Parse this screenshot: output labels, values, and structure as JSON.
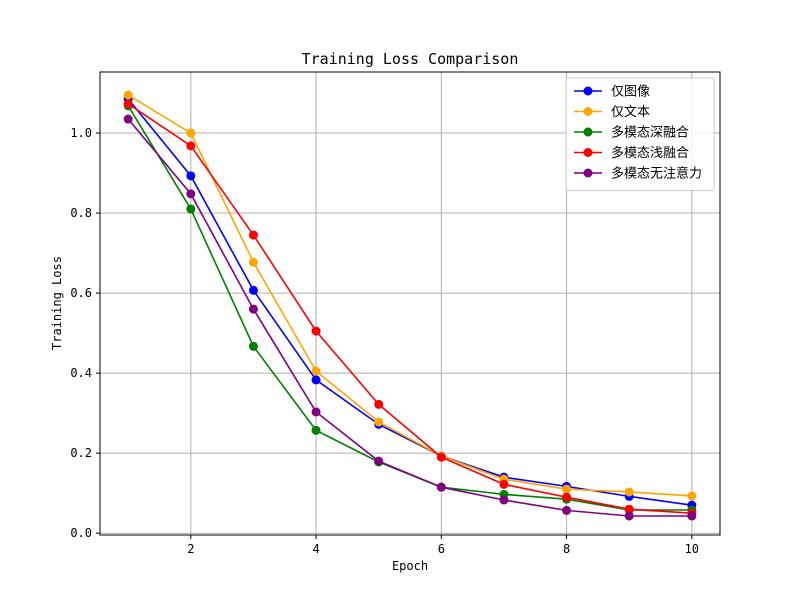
{
  "chart_data": {
    "type": "line",
    "title": "Training Loss Comparison",
    "xlabel": "Epoch",
    "ylabel": "Training Loss",
    "xlim": [
      0.55,
      10.45
    ],
    "ylim": [
      -0.0045,
      1.1525
    ],
    "xticks": [
      2,
      4,
      6,
      8,
      10
    ],
    "yticks": [
      0.0,
      0.2,
      0.4,
      0.6,
      0.8,
      1.0
    ],
    "xtick_labels": [
      "2",
      "4",
      "6",
      "8",
      "10"
    ],
    "ytick_labels": [
      "0.0",
      "0.2",
      "0.4",
      "0.6",
      "0.8",
      "1.0"
    ],
    "grid": true,
    "legend_position": "top-right",
    "x": [
      1,
      2,
      3,
      4,
      5,
      6,
      7,
      8,
      9,
      10
    ],
    "series": [
      {
        "name": "仅图像",
        "color": "#0000ff",
        "values": [
          1.085,
          0.893,
          0.607,
          0.383,
          0.272,
          0.193,
          0.14,
          0.117,
          0.092,
          0.07
        ]
      },
      {
        "name": "仅文本",
        "color": "#ffa500",
        "values": [
          1.095,
          1.0,
          0.677,
          0.405,
          0.278,
          0.193,
          0.135,
          0.11,
          0.103,
          0.093
        ]
      },
      {
        "name": "多模态深融合",
        "color": "#008000",
        "values": [
          1.068,
          0.81,
          0.467,
          0.257,
          0.178,
          0.115,
          0.097,
          0.085,
          0.058,
          0.058
        ]
      },
      {
        "name": "多模态浅融合",
        "color": "#ff0000",
        "values": [
          1.073,
          0.968,
          0.745,
          0.505,
          0.322,
          0.19,
          0.122,
          0.09,
          0.06,
          0.05
        ]
      },
      {
        "name": "多模态无注意力",
        "color": "#800080",
        "values": [
          1.035,
          0.848,
          0.56,
          0.303,
          0.18,
          0.115,
          0.083,
          0.057,
          0.043,
          0.043
        ]
      }
    ]
  }
}
